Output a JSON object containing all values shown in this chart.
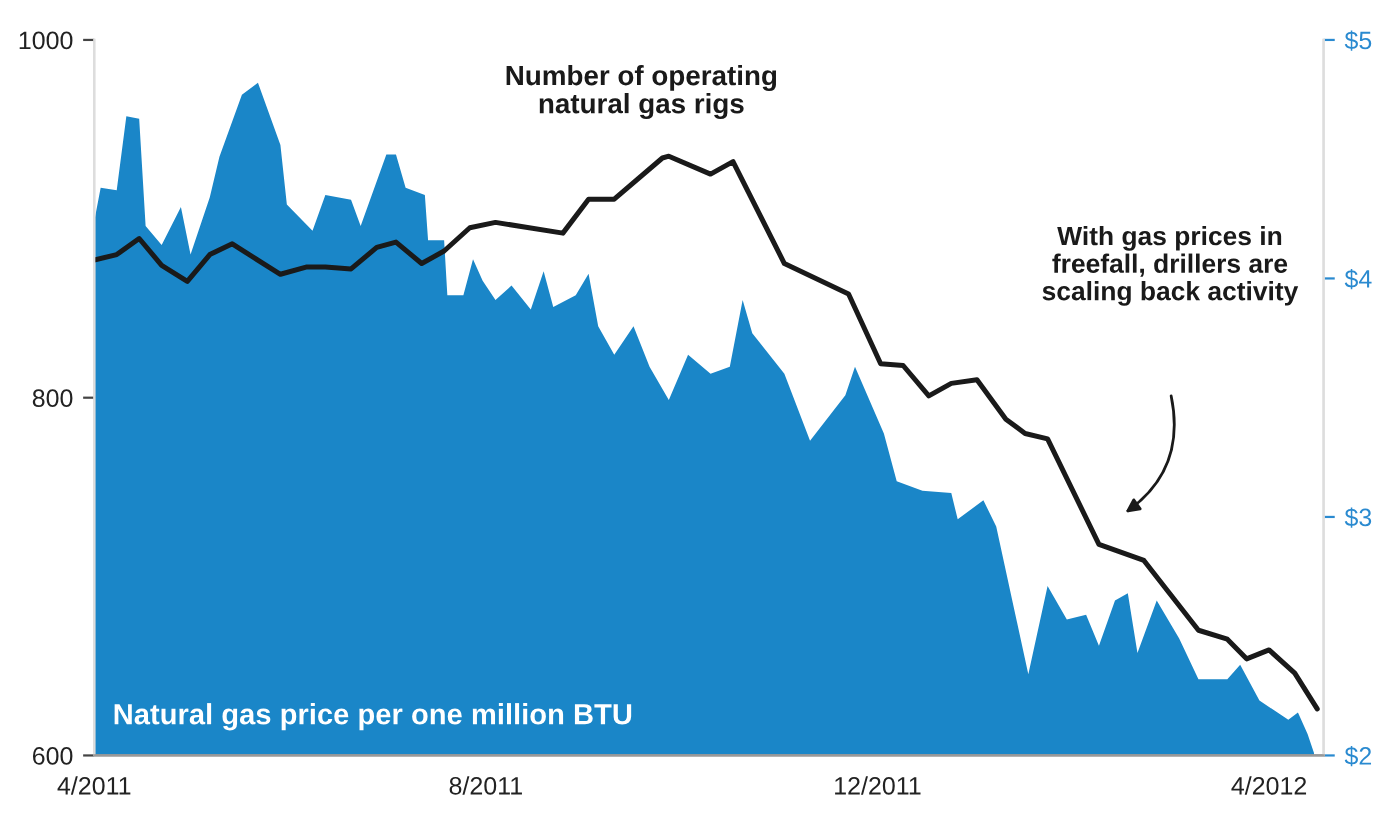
{
  "chart_data": {
    "type": "line",
    "xlim": [
      "2011-04-01",
      "2012-04-18"
    ],
    "xticks": [
      {
        "value": "2011-04-01",
        "label": "4/2011"
      },
      {
        "value": "2011-08-01",
        "label": "8/2011"
      },
      {
        "value": "2011-12-01",
        "label": "12/2011"
      },
      {
        "value": "2012-04-01",
        "label": "4/2012"
      }
    ],
    "ylim": [
      600,
      1000
    ],
    "yticks": [
      600,
      800,
      1000
    ],
    "y2lim": [
      2,
      5
    ],
    "y2ticks": [
      {
        "value": 2,
        "label": "$2"
      },
      {
        "value": 3,
        "label": "$3"
      },
      {
        "value": 4,
        "label": "$4"
      },
      {
        "value": 5,
        "label": "$5"
      }
    ],
    "grid": false,
    "legend": false,
    "series": [
      {
        "name": "Natural gas price per one million BTU",
        "type": "area",
        "axis": "y2",
        "color": "#1a86c8",
        "x": [
          "2011-04-01",
          "2011-04-03",
          "2011-04-08",
          "2011-04-11",
          "2011-04-15",
          "2011-04-17",
          "2011-04-22",
          "2011-04-28",
          "2011-05-01",
          "2011-05-07",
          "2011-05-10",
          "2011-05-17",
          "2011-05-22",
          "2011-05-29",
          "2011-05-31",
          "2011-06-08",
          "2011-06-12",
          "2011-06-20",
          "2011-06-23",
          "2011-07-01",
          "2011-07-04",
          "2011-07-07",
          "2011-07-13",
          "2011-07-14",
          "2011-07-19",
          "2011-07-20",
          "2011-07-25",
          "2011-07-28",
          "2011-07-31",
          "2011-08-04",
          "2011-08-09",
          "2011-08-15",
          "2011-08-19",
          "2011-08-22",
          "2011-08-29",
          "2011-09-02",
          "2011-09-05",
          "2011-09-10",
          "2011-09-16",
          "2011-09-21",
          "2011-09-27",
          "2011-10-03",
          "2011-10-10",
          "2011-10-16",
          "2011-10-20",
          "2011-10-23",
          "2011-11-02",
          "2011-11-10",
          "2011-11-21",
          "2011-11-24",
          "2011-12-03",
          "2011-12-07",
          "2011-12-15",
          "2011-12-24",
          "2011-12-26",
          "2012-01-03",
          "2012-01-07",
          "2012-01-12",
          "2012-01-17",
          "2012-01-23",
          "2012-01-29",
          "2012-02-04",
          "2012-02-08",
          "2012-02-13",
          "2012-02-17",
          "2012-02-20",
          "2012-02-26",
          "2012-03-04",
          "2012-03-10",
          "2012-03-19",
          "2012-03-23",
          "2012-03-29",
          "2012-04-07",
          "2012-04-10",
          "2012-04-13",
          "2012-04-15"
        ],
        "values": [
          4.24,
          4.38,
          4.37,
          4.68,
          4.67,
          4.22,
          4.14,
          4.3,
          4.1,
          4.34,
          4.51,
          4.77,
          4.82,
          4.56,
          4.31,
          4.2,
          4.35,
          4.33,
          4.22,
          4.52,
          4.52,
          4.38,
          4.35,
          4.16,
          4.16,
          3.93,
          3.93,
          4.08,
          3.99,
          3.91,
          3.97,
          3.87,
          4.03,
          3.88,
          3.93,
          4.02,
          3.8,
          3.68,
          3.8,
          3.63,
          3.49,
          3.68,
          3.6,
          3.63,
          3.91,
          3.77,
          3.6,
          3.32,
          3.51,
          3.63,
          3.35,
          3.15,
          3.11,
          3.1,
          2.99,
          3.07,
          2.96,
          2.65,
          2.34,
          2.71,
          2.57,
          2.59,
          2.46,
          2.65,
          2.68,
          2.43,
          2.65,
          2.49,
          2.32,
          2.32,
          2.38,
          2.23,
          2.15,
          2.18,
          2.09,
          2.01
        ]
      },
      {
        "name": "Number of operating\nnatural gas rigs",
        "color": "#1a1a1a",
        "x": [
          "2011-04-01",
          "2011-04-08",
          "2011-04-15",
          "2011-04-22",
          "2011-04-30",
          "2011-05-07",
          "2011-05-14",
          "2011-05-21",
          "2011-05-29",
          "2011-06-06",
          "2011-06-12",
          "2011-06-20",
          "2011-06-28",
          "2011-07-04",
          "2011-07-12",
          "2011-07-19",
          "2011-07-27",
          "2011-08-04",
          "2011-08-25",
          "2011-09-02",
          "2011-09-10",
          "2011-09-25",
          "2011-09-27",
          "2011-10-10",
          "2011-10-17",
          "2011-11-02",
          "2011-11-22",
          "2011-12-02",
          "2011-12-09",
          "2011-12-17",
          "2011-12-24",
          "2012-01-01",
          "2012-01-10",
          "2012-01-16",
          "2012-01-23",
          "2012-02-08",
          "2012-02-22",
          "2012-03-10",
          "2012-03-19",
          "2012-03-25",
          "2012-04-01",
          "2012-04-09",
          "2012-04-16"
        ],
        "values": [
          877,
          880,
          889,
          874,
          865,
          880,
          886,
          878,
          869,
          873,
          873,
          872,
          884,
          887,
          875,
          882,
          895,
          898,
          892,
          911,
          911,
          934,
          935,
          925,
          932,
          875,
          858,
          819,
          818,
          801,
          808,
          810,
          788,
          780,
          777,
          718,
          709,
          670,
          665,
          654,
          659,
          646,
          626
        ]
      }
    ],
    "annotations": [
      "With gas prices in\nfreefall, drillers are\nscaling back activity"
    ]
  }
}
